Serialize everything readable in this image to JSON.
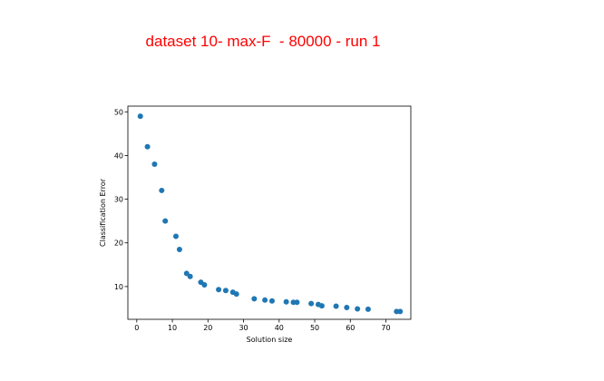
{
  "title": "dataset 10- max-F  - 80000 - run 1",
  "chart_data": {
    "type": "scatter",
    "title": "dataset 10- max-F  - 80000 - run 1",
    "xlabel": "Solution size",
    "ylabel": "Classification Error",
    "xlim": [
      -2.5,
      77
    ],
    "ylim": [
      2.5,
      51.3
    ],
    "xticks": [
      0,
      10,
      20,
      30,
      40,
      50,
      60,
      70
    ],
    "yticks": [
      10,
      20,
      30,
      40,
      50
    ],
    "grid": false,
    "color": "#1f77b4",
    "points": [
      {
        "x": 1,
        "y": 49
      },
      {
        "x": 3,
        "y": 42
      },
      {
        "x": 5,
        "y": 38
      },
      {
        "x": 7,
        "y": 32
      },
      {
        "x": 8,
        "y": 25
      },
      {
        "x": 11,
        "y": 21.5
      },
      {
        "x": 12,
        "y": 18.5
      },
      {
        "x": 14,
        "y": 13
      },
      {
        "x": 15,
        "y": 12.3
      },
      {
        "x": 18,
        "y": 11
      },
      {
        "x": 19,
        "y": 10.4
      },
      {
        "x": 23,
        "y": 9.3
      },
      {
        "x": 25,
        "y": 9.1
      },
      {
        "x": 27,
        "y": 8.7
      },
      {
        "x": 28,
        "y": 8.3
      },
      {
        "x": 33,
        "y": 7.2
      },
      {
        "x": 36,
        "y": 6.9
      },
      {
        "x": 38,
        "y": 6.7
      },
      {
        "x": 42,
        "y": 6.5
      },
      {
        "x": 44,
        "y": 6.4
      },
      {
        "x": 45,
        "y": 6.4
      },
      {
        "x": 49,
        "y": 6.1
      },
      {
        "x": 51,
        "y": 5.9
      },
      {
        "x": 52,
        "y": 5.6
      },
      {
        "x": 56,
        "y": 5.5
      },
      {
        "x": 59,
        "y": 5.2
      },
      {
        "x": 62,
        "y": 4.9
      },
      {
        "x": 65,
        "y": 4.8
      },
      {
        "x": 73,
        "y": 4.3
      },
      {
        "x": 74,
        "y": 4.3
      }
    ]
  }
}
